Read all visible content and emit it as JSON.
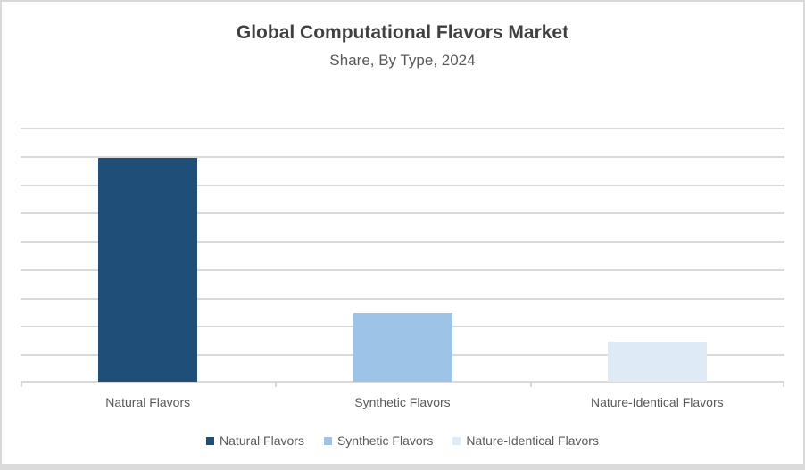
{
  "window": {
    "background": "#FFFFFF",
    "border_color": "#D8D8D8",
    "bottom_bar_color": "#DBDBDB"
  },
  "header": {
    "title": "Global Computational Flavors Market",
    "subtitle": "Share, By Type, 2024",
    "title_color": "#404040",
    "subtitle_color": "#595959"
  },
  "chart_data": {
    "type": "bar",
    "title": "Global Computational Flavors Market",
    "subtitle": "Share, By Type, 2024",
    "categories": [
      "Natural Flavors",
      "Synthetic Flavors",
      "Nature-Identical Flavors"
    ],
    "values": [
      79,
      24.2,
      14.2
    ],
    "ylim": [
      0,
      90
    ],
    "gridline_step": 10,
    "grid": true,
    "value_axis_labels_visible": false,
    "legend_position": "bottom",
    "bar_colors": [
      "#1F4E79",
      "#9DC3E6",
      "#DEEBF7"
    ],
    "bar_width_fraction": 0.39,
    "gridline_color": "#D9D9D9",
    "axis_color": "#D9D9D9",
    "label_color": "#595959"
  },
  "legend": {
    "items": [
      {
        "label": "Natural Flavors",
        "color": "#1F4E79"
      },
      {
        "label": "Synthetic Flavors",
        "color": "#9DC3E6"
      },
      {
        "label": "Nature-Identical Flavors",
        "color": "#DEEBF7"
      }
    ]
  }
}
